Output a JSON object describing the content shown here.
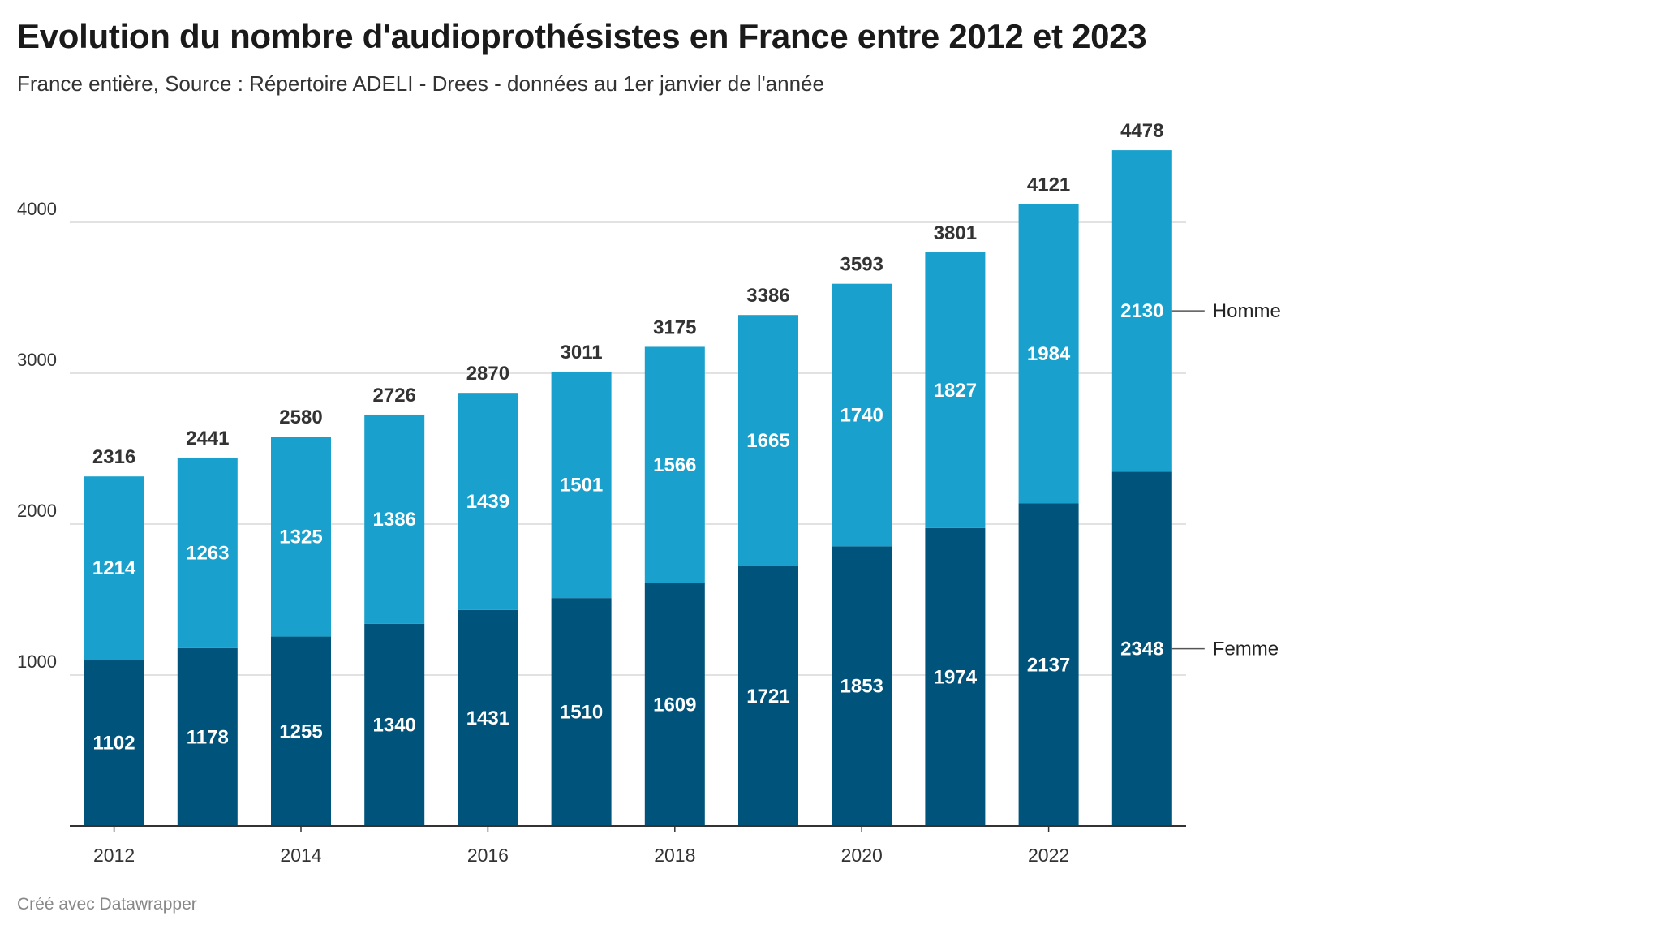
{
  "header": {
    "title": "Evolution du nombre d'audioprothésistes en France entre 2012 et 2023",
    "subtitle": "France entière, Source : Répertoire ADELI - Drees - données au 1er janvier de l'année"
  },
  "footer": {
    "credit": "Créé avec Datawrapper"
  },
  "colors": {
    "femme": "#00537A",
    "homme": "#19A0CC",
    "grid": "#D9D9D9",
    "axis": "#333333",
    "label_light": "#FFFFFF",
    "label_dark": "#333333"
  },
  "chart_data": {
    "type": "bar",
    "stacked": true,
    "categories": [
      "2012",
      "2013",
      "2014",
      "2015",
      "2016",
      "2017",
      "2018",
      "2019",
      "2020",
      "2021",
      "2022",
      "2023"
    ],
    "x_tick_labels": [
      "2012",
      "2014",
      "2016",
      "2018",
      "2020",
      "2022"
    ],
    "series": [
      {
        "name": "Femme",
        "values": [
          1102,
          1178,
          1255,
          1340,
          1431,
          1510,
          1609,
          1721,
          1853,
          1974,
          2137,
          2348
        ]
      },
      {
        "name": "Homme",
        "values": [
          1214,
          1263,
          1325,
          1386,
          1439,
          1501,
          1566,
          1665,
          1740,
          1827,
          1984,
          2130
        ]
      }
    ],
    "totals": [
      2316,
      2441,
      2580,
      2726,
      2870,
      3011,
      3175,
      3386,
      3593,
      3801,
      4121,
      4478
    ],
    "ylim": [
      0,
      4478
    ],
    "y_ticks": [
      1000,
      2000,
      3000,
      4000
    ],
    "grid": true,
    "legend": "direct labels right of last bar"
  }
}
